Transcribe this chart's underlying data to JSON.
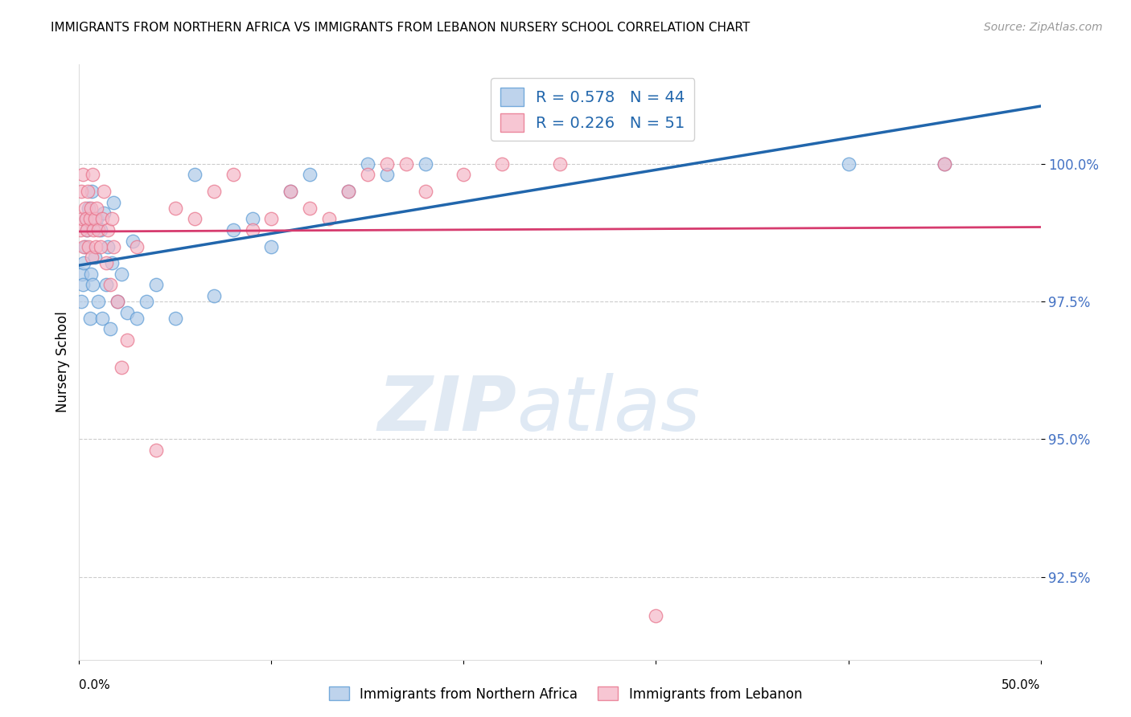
{
  "title": "IMMIGRANTS FROM NORTHERN AFRICA VS IMMIGRANTS FROM LEBANON NURSERY SCHOOL CORRELATION CHART",
  "source": "Source: ZipAtlas.com",
  "ylabel": "Nursery School",
  "xlim": [
    0.0,
    50.0
  ],
  "ylim": [
    91.0,
    101.8
  ],
  "yticks": [
    92.5,
    95.0,
    97.5,
    100.0
  ],
  "ytick_labels": [
    "92.5%",
    "95.0%",
    "97.5%",
    "100.0%"
  ],
  "blue_R": 0.578,
  "blue_N": 44,
  "pink_R": 0.226,
  "pink_N": 51,
  "blue_color": "#aec9e8",
  "pink_color": "#f5b8c8",
  "blue_edge_color": "#5b9bd5",
  "pink_edge_color": "#e8728a",
  "blue_line_color": "#2166ac",
  "pink_line_color": "#d63b6e",
  "legend_label_blue": "Immigrants from Northern Africa",
  "legend_label_pink": "Immigrants from Lebanon",
  "watermark_zip": "ZIP",
  "watermark_atlas": "atlas",
  "blue_scatter_x": [
    0.1,
    0.15,
    0.2,
    0.25,
    0.3,
    0.35,
    0.4,
    0.5,
    0.55,
    0.6,
    0.65,
    0.7,
    0.8,
    0.9,
    1.0,
    1.1,
    1.2,
    1.3,
    1.4,
    1.5,
    1.6,
    1.7,
    1.8,
    2.0,
    2.2,
    2.5,
    2.8,
    3.0,
    3.5,
    4.0,
    5.0,
    6.0,
    7.0,
    8.0,
    9.0,
    10.0,
    11.0,
    12.0,
    14.0,
    15.0,
    16.0,
    18.0,
    40.0,
    45.0
  ],
  "blue_scatter_y": [
    97.5,
    98.0,
    97.8,
    98.2,
    98.5,
    99.0,
    98.8,
    99.2,
    97.2,
    98.0,
    99.5,
    97.8,
    98.3,
    99.0,
    97.5,
    98.8,
    97.2,
    99.1,
    97.8,
    98.5,
    97.0,
    98.2,
    99.3,
    97.5,
    98.0,
    97.3,
    98.6,
    97.2,
    97.5,
    97.8,
    97.2,
    99.8,
    97.6,
    98.8,
    99.0,
    98.5,
    99.5,
    99.8,
    99.5,
    100.0,
    99.8,
    100.0,
    100.0,
    100.0
  ],
  "pink_scatter_x": [
    0.05,
    0.1,
    0.15,
    0.2,
    0.25,
    0.3,
    0.35,
    0.4,
    0.45,
    0.5,
    0.55,
    0.6,
    0.65,
    0.7,
    0.75,
    0.8,
    0.85,
    0.9,
    1.0,
    1.1,
    1.2,
    1.3,
    1.4,
    1.5,
    1.6,
    1.7,
    1.8,
    2.0,
    2.2,
    2.5,
    3.0,
    4.0,
    5.0,
    6.0,
    7.0,
    8.0,
    9.0,
    10.0,
    11.0,
    12.0,
    13.0,
    14.0,
    15.0,
    16.0,
    17.0,
    18.0,
    20.0,
    22.0,
    25.0,
    30.0,
    45.0
  ],
  "pink_scatter_y": [
    98.8,
    99.5,
    99.0,
    99.8,
    98.5,
    99.2,
    99.0,
    98.8,
    99.5,
    98.5,
    99.0,
    99.2,
    98.3,
    99.8,
    98.8,
    99.0,
    98.5,
    99.2,
    98.8,
    98.5,
    99.0,
    99.5,
    98.2,
    98.8,
    97.8,
    99.0,
    98.5,
    97.5,
    96.3,
    96.8,
    98.5,
    94.8,
    99.2,
    99.0,
    99.5,
    99.8,
    98.8,
    99.0,
    99.5,
    99.2,
    99.0,
    99.5,
    99.8,
    100.0,
    100.0,
    99.5,
    99.8,
    100.0,
    100.0,
    91.8,
    100.0
  ]
}
